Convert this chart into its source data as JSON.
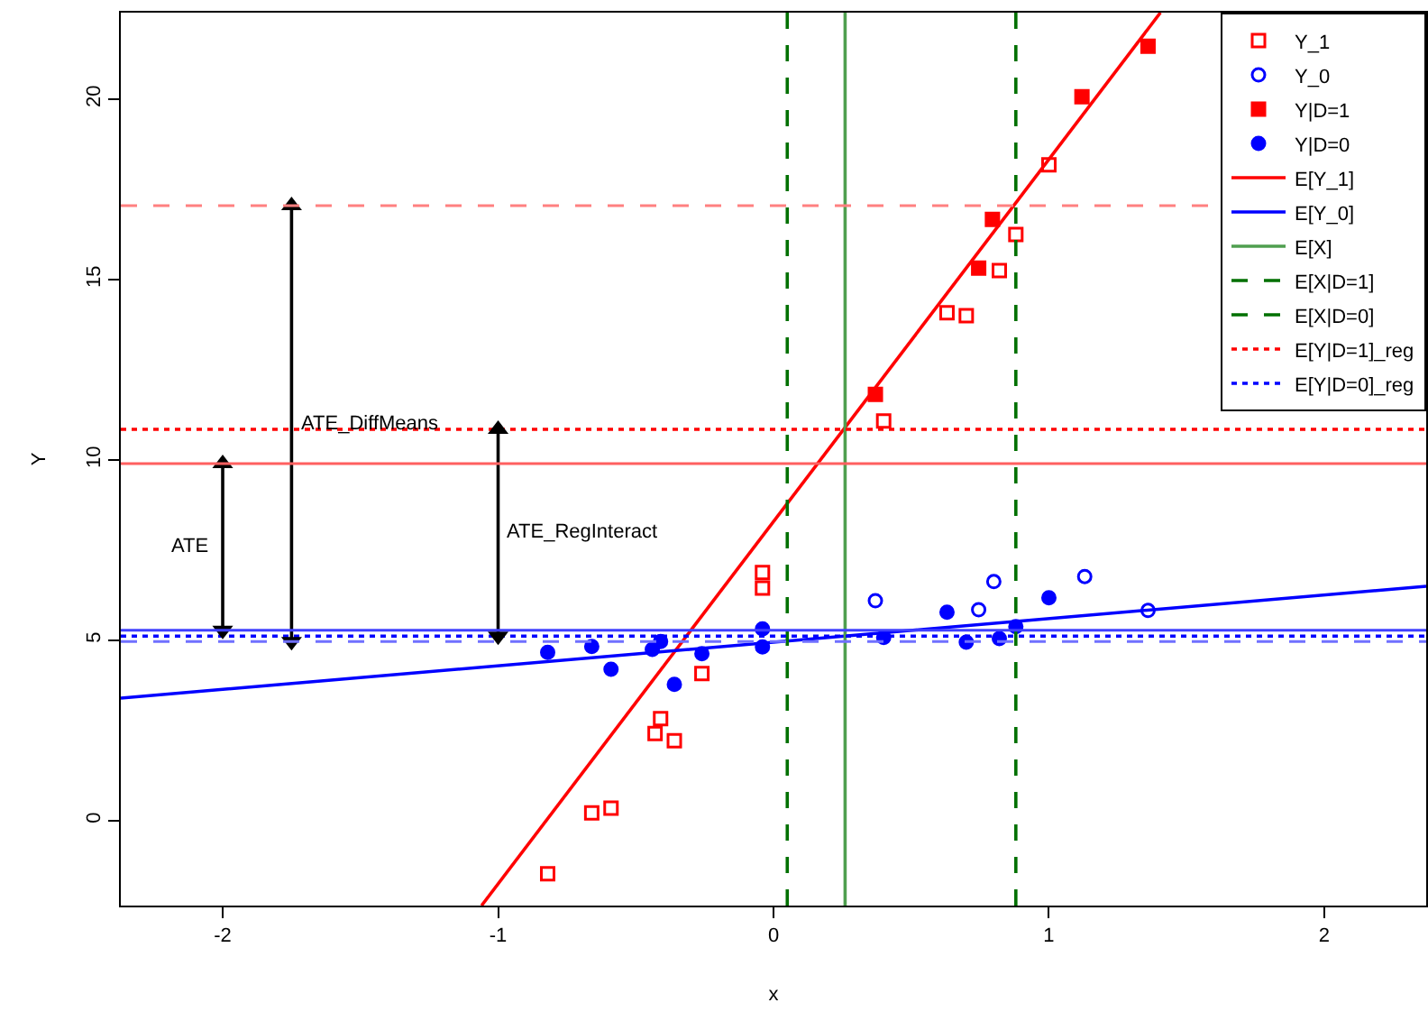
{
  "chart_data": {
    "type": "scatter",
    "xlabel": "x",
    "ylabel": "Y",
    "xlim": [
      -2.37,
      2.37
    ],
    "ylim": [
      -2.35,
      22.4
    ],
    "xticks": [
      -2,
      -1,
      0,
      1,
      2
    ],
    "yticks": [
      0,
      5,
      10,
      15,
      20
    ],
    "legend": "top right",
    "series": [
      {
        "name": "Y_1",
        "marker": "square-open",
        "color": "#ff0000",
        "x": [
          -0.04,
          -0.04,
          -0.26,
          -0.41,
          -0.43,
          -0.36,
          -0.66,
          -0.59,
          -0.82,
          0.4,
          0.63,
          0.7,
          0.82,
          0.88,
          1.0
        ],
        "values": [
          6.88,
          6.45,
          4.08,
          2.83,
          2.42,
          2.22,
          0.22,
          0.35,
          -1.47,
          11.08,
          14.08,
          14.0,
          15.25,
          16.25,
          18.18
        ]
      },
      {
        "name": "Y_0",
        "marker": "circle-open",
        "color": "#0000ff",
        "x": [
          0.37,
          0.745,
          0.8,
          1.13,
          1.36
        ],
        "values": [
          6.1,
          5.85,
          6.63,
          6.77,
          5.83
        ]
      },
      {
        "name": "Y|D=1",
        "marker": "square",
        "color": "#ff0000",
        "x": [
          0.37,
          0.745,
          0.795,
          1.12,
          1.36
        ],
        "values": [
          11.82,
          15.32,
          16.67,
          20.07,
          21.47
        ]
      },
      {
        "name": "Y|D=0",
        "marker": "circle",
        "color": "#0000ff",
        "x": [
          -0.82,
          -0.66,
          -0.59,
          -0.44,
          -0.41,
          -0.36,
          -0.26,
          -0.04,
          -0.04,
          0.4,
          0.63,
          0.7,
          0.82,
          0.88,
          1.0
        ],
        "values": [
          4.67,
          4.83,
          4.2,
          4.75,
          4.97,
          3.78,
          4.63,
          5.32,
          4.82,
          5.08,
          5.78,
          4.95,
          5.05,
          5.38,
          6.18
        ]
      },
      {
        "name": "E[Y_1]",
        "type": "line",
        "line_style": "solid",
        "color": "#ff0000",
        "x": [
          -1.06,
          1.405
        ],
        "values": [
          -2.35,
          22.4
        ]
      },
      {
        "name": "E[Y_0]",
        "type": "line",
        "line_style": "solid",
        "color": "#0000ff",
        "x": [
          -2.37,
          2.37
        ],
        "values": [
          3.4,
          6.5
        ]
      },
      {
        "name": "E[X]",
        "type": "line",
        "line_style": "solid",
        "color": "#4f9f4f",
        "x": [
          0.26,
          0.26
        ],
        "values": [
          -2.35,
          22.4
        ]
      },
      {
        "name": "E[X|D=1]",
        "type": "line",
        "line_style": "dashed",
        "color": "#007000",
        "x": [
          0.88,
          0.88
        ],
        "values": [
          -2.35,
          22.4
        ]
      },
      {
        "name": "E[X|D=0]",
        "type": "line",
        "line_style": "dashed",
        "color": "#007000",
        "x": [
          0.05,
          0.05
        ],
        "values": [
          -2.35,
          22.4
        ]
      },
      {
        "name": "E[Y|D=1]_reg",
        "type": "line",
        "line_style": "dotted",
        "color": "#ff0000",
        "x": [
          -2.37,
          2.37
        ],
        "values": [
          10.85,
          10.85
        ]
      },
      {
        "name": "E[Y|D=0]_reg",
        "type": "line",
        "line_style": "dotted",
        "color": "#0000ff",
        "x": [
          -2.37,
          2.37
        ],
        "values": [
          5.12,
          5.12
        ]
      },
      {
        "name": "ATE",
        "type": "line",
        "line_style": "solid",
        "marker": "triangle",
        "color": "#000000",
        "x": [
          -2.0,
          -2.0
        ],
        "values": [
          9.9,
          5.28
        ]
      },
      {
        "name": "ATE_DiffMeans",
        "type": "line",
        "line_style": "solid",
        "marker": "triangle",
        "color": "#000000",
        "x": [
          -1.75,
          -1.75
        ],
        "values": [
          17.05,
          4.97
        ]
      },
      {
        "name": "ATE_RegInteract",
        "type": "line",
        "line_style": "solid",
        "marker": "triangle",
        "color": "#000000",
        "x": [
          -1.0,
          -1.0
        ],
        "values": [
          10.85,
          5.12
        ]
      }
    ],
    "ref_lines": [
      {
        "axis": "y",
        "value": 17.05,
        "color": "#ff8080",
        "line_style": "dashed"
      },
      {
        "axis": "y",
        "value": 9.9,
        "color": "#ff6060",
        "line_style": "solid"
      },
      {
        "axis": "y",
        "value": 5.28,
        "color": "#4040ff",
        "line_style": "solid"
      },
      {
        "axis": "y",
        "value": 4.97,
        "color": "#7070ff",
        "line_style": "dashed"
      }
    ]
  }
}
